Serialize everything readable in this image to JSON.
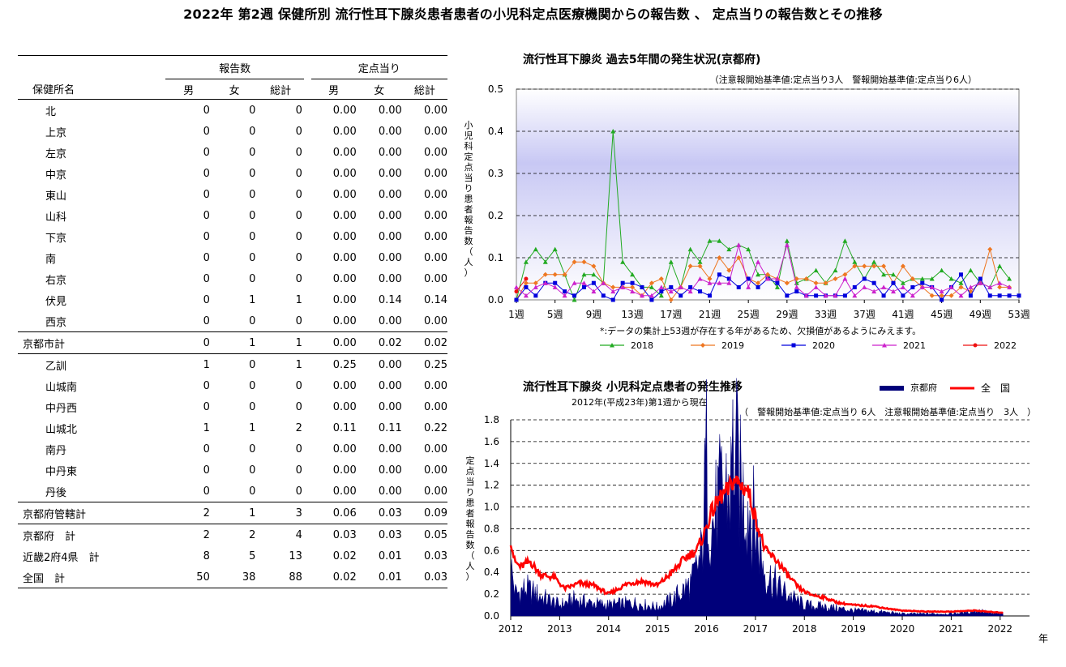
{
  "page_title": "2022年 第2週 保健所別 流行性耳下腺炎患者患者の小児科定点医療機関からの報告数 、 定点当りの報告数とその推移",
  "table": {
    "group_headers": [
      "報告数",
      "定点当り"
    ],
    "columns": [
      "保健所名",
      "男",
      "女",
      "総計",
      "男",
      "女",
      "総計"
    ],
    "rows": [
      {
        "name": "北",
        "cnt": [
          "0",
          "0",
          "0"
        ],
        "rate": [
          "0.00",
          "0.00",
          "0.00"
        ]
      },
      {
        "name": "上京",
        "cnt": [
          "0",
          "0",
          "0"
        ],
        "rate": [
          "0.00",
          "0.00",
          "0.00"
        ]
      },
      {
        "name": "左京",
        "cnt": [
          "0",
          "0",
          "0"
        ],
        "rate": [
          "0.00",
          "0.00",
          "0.00"
        ]
      },
      {
        "name": "中京",
        "cnt": [
          "0",
          "0",
          "0"
        ],
        "rate": [
          "0.00",
          "0.00",
          "0.00"
        ]
      },
      {
        "name": "東山",
        "cnt": [
          "0",
          "0",
          "0"
        ],
        "rate": [
          "0.00",
          "0.00",
          "0.00"
        ]
      },
      {
        "name": "山科",
        "cnt": [
          "0",
          "0",
          "0"
        ],
        "rate": [
          "0.00",
          "0.00",
          "0.00"
        ]
      },
      {
        "name": "下京",
        "cnt": [
          "0",
          "0",
          "0"
        ],
        "rate": [
          "0.00",
          "0.00",
          "0.00"
        ]
      },
      {
        "name": "南",
        "cnt": [
          "0",
          "0",
          "0"
        ],
        "rate": [
          "0.00",
          "0.00",
          "0.00"
        ]
      },
      {
        "name": "右京",
        "cnt": [
          "0",
          "0",
          "0"
        ],
        "rate": [
          "0.00",
          "0.00",
          "0.00"
        ]
      },
      {
        "name": "伏見",
        "cnt": [
          "0",
          "1",
          "1"
        ],
        "rate": [
          "0.00",
          "0.14",
          "0.14"
        ]
      },
      {
        "name": "西京",
        "cnt": [
          "0",
          "0",
          "0"
        ],
        "rate": [
          "0.00",
          "0.00",
          "0.00"
        ]
      },
      {
        "name": "京都市計",
        "cnt": [
          "0",
          "1",
          "1"
        ],
        "rate": [
          "0.00",
          "0.02",
          "0.02"
        ]
      },
      {
        "name": "乙訓",
        "cnt": [
          "1",
          "0",
          "1"
        ],
        "rate": [
          "0.25",
          "0.00",
          "0.25"
        ]
      },
      {
        "name": "山城南",
        "cnt": [
          "0",
          "0",
          "0"
        ],
        "rate": [
          "0.00",
          "0.00",
          "0.00"
        ]
      },
      {
        "name": "中丹西",
        "cnt": [
          "0",
          "0",
          "0"
        ],
        "rate": [
          "0.00",
          "0.00",
          "0.00"
        ]
      },
      {
        "name": "山城北",
        "cnt": [
          "1",
          "1",
          "2"
        ],
        "rate": [
          "0.11",
          "0.11",
          "0.22"
        ]
      },
      {
        "name": "南丹",
        "cnt": [
          "0",
          "0",
          "0"
        ],
        "rate": [
          "0.00",
          "0.00",
          "0.00"
        ]
      },
      {
        "name": "中丹東",
        "cnt": [
          "0",
          "0",
          "0"
        ],
        "rate": [
          "0.00",
          "0.00",
          "0.00"
        ]
      },
      {
        "name": "丹後",
        "cnt": [
          "0",
          "0",
          "0"
        ],
        "rate": [
          "0.00",
          "0.00",
          "0.00"
        ]
      },
      {
        "name": "京都府管轄計",
        "cnt": [
          "2",
          "1",
          "3"
        ],
        "rate": [
          "0.06",
          "0.03",
          "0.09"
        ]
      },
      {
        "name": "京都府　計",
        "cnt": [
          "2",
          "2",
          "4"
        ],
        "rate": [
          "0.03",
          "0.03",
          "0.05"
        ]
      },
      {
        "name": "近畿2府4県　計",
        "cnt": [
          "8",
          "5",
          "13"
        ],
        "rate": [
          "0.02",
          "0.01",
          "0.03"
        ]
      },
      {
        "name": "全国　計",
        "cnt": [
          "50",
          "38",
          "88"
        ],
        "rate": [
          "0.02",
          "0.01",
          "0.03"
        ]
      }
    ]
  },
  "chart_data": [
    {
      "type": "line",
      "title": "流行性耳下腺炎 過去5年間の発生状況(京都府)",
      "subtitle": "（注意報開始基準値:定点当り3人　警報開始基準値:定点当り6人）",
      "ylabel": "小児科定点当り患者報告数（人）",
      "note": "*:データの集計上53週が存在する年があるため、欠損値があるようにみえます。",
      "xlabel_ticks": [
        "1週",
        "5週",
        "9週",
        "13週",
        "17週",
        "21週",
        "25週",
        "29週",
        "33週",
        "37週",
        "41週",
        "45週",
        "49週",
        "53週"
      ],
      "ylim": [
        0,
        0.5
      ],
      "yticks": [
        "0.0",
        "0.1",
        "0.2",
        "0.3",
        "0.4",
        "0.5"
      ],
      "grid": "dashed horizontal",
      "legend_position": "bottom",
      "series": [
        {
          "name": "2018",
          "color": "#22aa22",
          "marker": "triangle",
          "values": [
            0,
            0.09,
            0.12,
            0.09,
            0.12,
            0.06,
            0,
            0.06,
            0.06,
            0.04,
            0.4,
            0.09,
            0.06,
            0.03,
            0.03,
            0.01,
            0.09,
            0.03,
            0.12,
            0.09,
            0.14,
            0.14,
            0.12,
            0.13,
            0.12,
            0.06,
            0.06,
            0.03,
            0.14,
            0.04,
            0.05,
            0.07,
            0.04,
            0.07,
            0.14,
            0.09,
            0.05,
            0.09,
            0.06,
            0.06,
            0.04,
            0.05,
            0.05,
            0.05,
            0.07,
            0.05,
            0.04,
            0.07,
            0.04,
            0.03,
            0.08,
            0.05
          ]
        },
        {
          "name": "2019",
          "color": "#ee7722",
          "marker": "diamond",
          "values": [
            0,
            0.04,
            0.04,
            0.06,
            0.06,
            0.06,
            0.09,
            0.09,
            0.08,
            0.04,
            0.03,
            0.03,
            0.03,
            0.01,
            0.04,
            0.05,
            0,
            0.03,
            0.08,
            0.08,
            0.05,
            0.1,
            0.07,
            0.1,
            0.05,
            0.04,
            0.06,
            0.05,
            0.04,
            0.05,
            0.05,
            0.04,
            0.04,
            0.05,
            0.06,
            0.08,
            0.08,
            0.08,
            0.08,
            0.04,
            0.08,
            0.05,
            0.03,
            0.01,
            0.01,
            0.01,
            0.03,
            0.02,
            0.04,
            0.12,
            0.03,
            0.03
          ]
        },
        {
          "name": "2020",
          "color": "#0000dd",
          "marker": "square",
          "values": [
            0,
            0.03,
            0.01,
            0.04,
            0.04,
            0.02,
            0.01,
            0.03,
            0.04,
            0.01,
            0,
            0.04,
            0.04,
            0.03,
            0,
            0.02,
            0.03,
            0.01,
            0.03,
            0.02,
            0.01,
            0.06,
            0.05,
            0.03,
            0.05,
            0.03,
            0.05,
            0.04,
            0.01,
            0.02,
            0.01,
            0.01,
            0.01,
            0.01,
            0.01,
            0.03,
            0.05,
            0.04,
            0.01,
            0.04,
            0.01,
            0.03,
            0.04,
            0.03,
            0,
            0.03,
            0.06,
            0.01,
            0.05,
            0.01,
            0.01,
            0.01,
            0.01
          ]
        },
        {
          "name": "2021",
          "color": "#cc22cc",
          "marker": "triangle",
          "values": [
            0.03,
            0.01,
            0.03,
            0.04,
            0.03,
            0.01,
            0.04,
            0.04,
            0.02,
            0.04,
            0.02,
            0.03,
            0.02,
            0.01,
            0.01,
            0.03,
            0.02,
            0.03,
            0.02,
            0.05,
            0.04,
            0.04,
            0.04,
            0.13,
            0.03,
            0.09,
            0.05,
            0.05,
            0.13,
            0.03,
            0.01,
            0.03,
            0.01,
            0.01,
            0.05,
            0.01,
            0.03,
            0.02,
            0.03,
            0.02,
            0.03,
            0.01,
            0.03,
            0.03,
            0.02,
            0.03,
            0.01,
            0.03,
            0.04,
            0.03,
            0.04,
            0.03
          ]
        },
        {
          "name": "2022",
          "color": "#ee1111",
          "marker": "circle",
          "values": [
            0.02,
            0.05
          ]
        }
      ]
    },
    {
      "type": "area",
      "title": "流行性耳下腺炎  小児科定点患者の発生推移",
      "subtitle": "2012年(平成23年)第1週から現在",
      "threshold_note": "（　警報開始基準値:定点当り 6人　注意報開始基準値:定点当り　3人　）",
      "ylabel": "定点当り患者報告数（人）",
      "xlabel": "年",
      "x_ticks": [
        "2012",
        "2013",
        "2014",
        "2015",
        "2016",
        "2017",
        "2018",
        "2019",
        "2020",
        "2021",
        "2022"
      ],
      "ylim": [
        0,
        1.8
      ],
      "yticks": [
        "0.0",
        "0.2",
        "0.4",
        "0.6",
        "0.8",
        "1.0",
        "1.2",
        "1.4",
        "1.6",
        "1.8"
      ],
      "grid": "dashed horizontal",
      "legend": [
        {
          "name": "京都府",
          "color": "#00007a",
          "style": "filled area"
        },
        {
          "name": "全　国",
          "color": "#ff0000",
          "style": "line"
        }
      ],
      "series": [
        {
          "name": "京都府",
          "color": "#00007a",
          "anchors_year_value": [
            [
              2012.0,
              0.45
            ],
            [
              2012.1,
              0.2
            ],
            [
              2012.3,
              0.25
            ],
            [
              2012.6,
              0.18
            ],
            [
              2013.0,
              0.1
            ],
            [
              2013.3,
              0.15
            ],
            [
              2013.6,
              0.12
            ],
            [
              2014.0,
              0.1
            ],
            [
              2014.5,
              0.12
            ],
            [
              2015.0,
              0.08
            ],
            [
              2015.3,
              0.15
            ],
            [
              2015.7,
              0.3
            ],
            [
              2015.9,
              0.55
            ],
            [
              2016.0,
              1.45
            ],
            [
              2016.1,
              0.8
            ],
            [
              2016.3,
              1.1
            ],
            [
              2016.5,
              1.2
            ],
            [
              2016.55,
              1.6
            ],
            [
              2016.7,
              1.15
            ],
            [
              2016.9,
              1.0
            ],
            [
              2017.0,
              0.8
            ],
            [
              2017.2,
              0.4
            ],
            [
              2017.5,
              0.25
            ],
            [
              2017.8,
              0.15
            ],
            [
              2018.0,
              0.1
            ],
            [
              2018.5,
              0.08
            ],
            [
              2019.0,
              0.05
            ],
            [
              2019.5,
              0.04
            ],
            [
              2020.0,
              0.02
            ],
            [
              2020.5,
              0.02
            ],
            [
              2021.0,
              0.02
            ],
            [
              2021.6,
              0.05
            ],
            [
              2021.8,
              0.02
            ],
            [
              2022.05,
              0.02
            ]
          ]
        },
        {
          "name": "全　国",
          "color": "#ff0000",
          "anchors_year_value": [
            [
              2012.0,
              0.7
            ],
            [
              2012.08,
              0.5
            ],
            [
              2012.2,
              0.45
            ],
            [
              2012.4,
              0.5
            ],
            [
              2012.6,
              0.38
            ],
            [
              2012.9,
              0.35
            ],
            [
              2013.1,
              0.25
            ],
            [
              2013.4,
              0.3
            ],
            [
              2013.7,
              0.28
            ],
            [
              2014.0,
              0.2
            ],
            [
              2014.4,
              0.3
            ],
            [
              2014.7,
              0.32
            ],
            [
              2015.0,
              0.28
            ],
            [
              2015.3,
              0.4
            ],
            [
              2015.6,
              0.55
            ],
            [
              2015.8,
              0.6
            ],
            [
              2015.95,
              0.75
            ],
            [
              2016.1,
              0.95
            ],
            [
              2016.3,
              1.1
            ],
            [
              2016.45,
              1.15
            ],
            [
              2016.55,
              1.25
            ],
            [
              2016.7,
              1.2
            ],
            [
              2016.85,
              1.15
            ],
            [
              2017.0,
              0.9
            ],
            [
              2017.2,
              0.6
            ],
            [
              2017.45,
              0.5
            ],
            [
              2017.7,
              0.35
            ],
            [
              2017.9,
              0.25
            ],
            [
              2018.1,
              0.2
            ],
            [
              2018.4,
              0.17
            ],
            [
              2018.7,
              0.12
            ],
            [
              2019.0,
              0.1
            ],
            [
              2019.4,
              0.09
            ],
            [
              2019.8,
              0.06
            ],
            [
              2020.0,
              0.05
            ],
            [
              2020.5,
              0.04
            ],
            [
              2021.0,
              0.04
            ],
            [
              2021.5,
              0.05
            ],
            [
              2021.7,
              0.04
            ],
            [
              2022.05,
              0.03
            ]
          ]
        }
      ]
    }
  ]
}
